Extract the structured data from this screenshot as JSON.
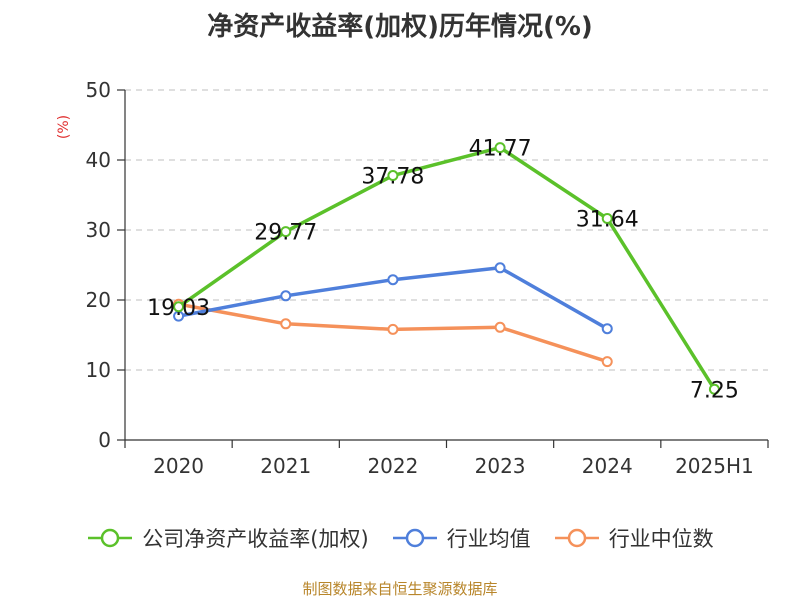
{
  "chart_data": {
    "type": "line",
    "title": "净资产收益率(加权)历年情况(%)",
    "ylabel": "(%)",
    "xlabel": "",
    "categories": [
      "2020",
      "2021",
      "2022",
      "2023",
      "2024",
      "2025H1"
    ],
    "ylim": [
      0,
      50
    ],
    "yticks": [
      0,
      10,
      20,
      30,
      40,
      50
    ],
    "grid": true,
    "legend_position": "bottom",
    "series": [
      {
        "name": "公司净资产收益率(加权)",
        "color": "#5bc12a",
        "values": [
          19.03,
          29.77,
          37.78,
          41.77,
          31.64,
          7.25
        ],
        "labels": [
          "19.03",
          "29.77",
          "37.78",
          "41.77",
          "31.64",
          "7.25"
        ]
      },
      {
        "name": "行业均值",
        "color": "#4f7fdb",
        "values": [
          17.7,
          20.6,
          22.9,
          24.6,
          15.9,
          null
        ]
      },
      {
        "name": "行业中位数",
        "color": "#f5915a",
        "values": [
          19.4,
          16.6,
          15.8,
          16.1,
          11.2,
          null
        ]
      }
    ]
  },
  "source_text": "制图数据来自恒生聚源数据库",
  "colors": {
    "axis": "#333333",
    "grid": "#cccccc",
    "ylabel": "#e03030",
    "source": "#b8862b"
  }
}
